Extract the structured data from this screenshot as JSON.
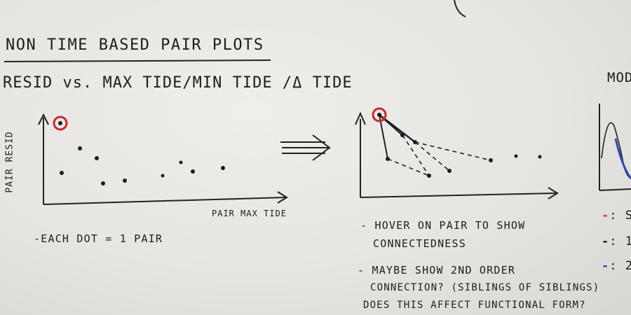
{
  "title": "NON TIME BASED PAIR PLOTS",
  "subtitle": "RESID vs. MAX TIDE/MIN TIDE /Δ TIDE",
  "left_plot": {
    "y_label": "PAIR RESID",
    "x_label": "PAIR MAX TIDE",
    "caption": "-EACH DOT = 1 PAIR"
  },
  "arrow_glyph": "⇒",
  "right_notes": {
    "line1": "- HOVER ON PAIR TO SHOW",
    "line2": "CONNECTEDNESS",
    "line3": "- MAYBE SHOW 2ND ORDER",
    "line4": "CONNECTION? (SIBLINGS OF SIBLINGS)",
    "line5": "DOES THIS AFFECT FUNCTIONAL FORM?"
  },
  "cutoff": {
    "heading": "MOD",
    "legend": [
      {
        "mark": "-",
        "text": ": S",
        "color": "#d23a3a"
      },
      {
        "mark": "-",
        "text": ": 1",
        "color": "#1b1b1b"
      },
      {
        "mark": "-",
        "text": ": 2",
        "color": "#2b47b8"
      }
    ]
  },
  "colors": {
    "ink": "#1b1b1b",
    "highlight": "#c8282b",
    "blue": "#2b47b8"
  }
}
